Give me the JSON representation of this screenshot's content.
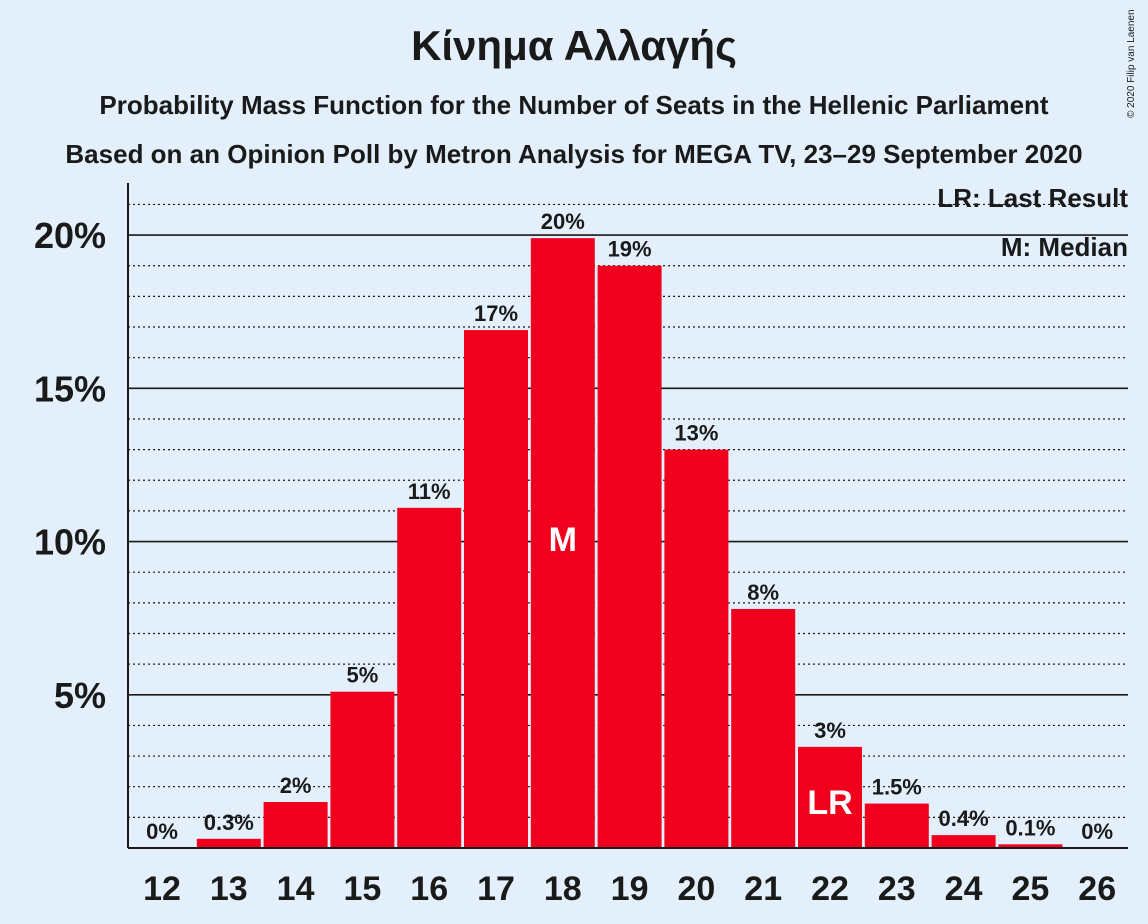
{
  "chart_data": {
    "type": "bar",
    "title": "Κίνημα Αλλαγής",
    "subtitle_1": "Probability Mass Function for the Number of Seats in the Hellenic Parliament",
    "subtitle_2": "Based on an Opinion Poll by Metron Analysis for MEGA TV, 23–29 September 2020",
    "copyright": "© 2020 Filip van Laenen",
    "categories": [
      "12",
      "13",
      "14",
      "15",
      "16",
      "17",
      "18",
      "19",
      "20",
      "21",
      "22",
      "23",
      "24",
      "25",
      "26"
    ],
    "values": [
      0,
      0.3,
      1.5,
      5.1,
      11.1,
      16.9,
      19.9,
      19.0,
      13.0,
      7.8,
      3.3,
      1.45,
      0.42,
      0.12,
      0
    ],
    "data_labels": [
      "0%",
      "0.3%",
      "2%",
      "5%",
      "11%",
      "17%",
      "20%",
      "19%",
      "13%",
      "8%",
      "3%",
      "1.5%",
      "0.4%",
      "0.1%",
      "0%"
    ],
    "ylim": [
      0,
      21.7
    ],
    "y_ticks": [
      5,
      10,
      15,
      20
    ],
    "y_tick_labels": [
      "5%",
      "10%",
      "15%",
      "20%"
    ],
    "minor_gridline_step": 1,
    "median_category": "18",
    "median_marker": "M",
    "last_result_category": "22",
    "last_result_marker": "LR",
    "legend": [
      "LR: Last Result",
      "M: Median"
    ],
    "bar_color": "#f0001c",
    "marker_text_color": "#ffffff",
    "background": "#e3f0fc"
  }
}
